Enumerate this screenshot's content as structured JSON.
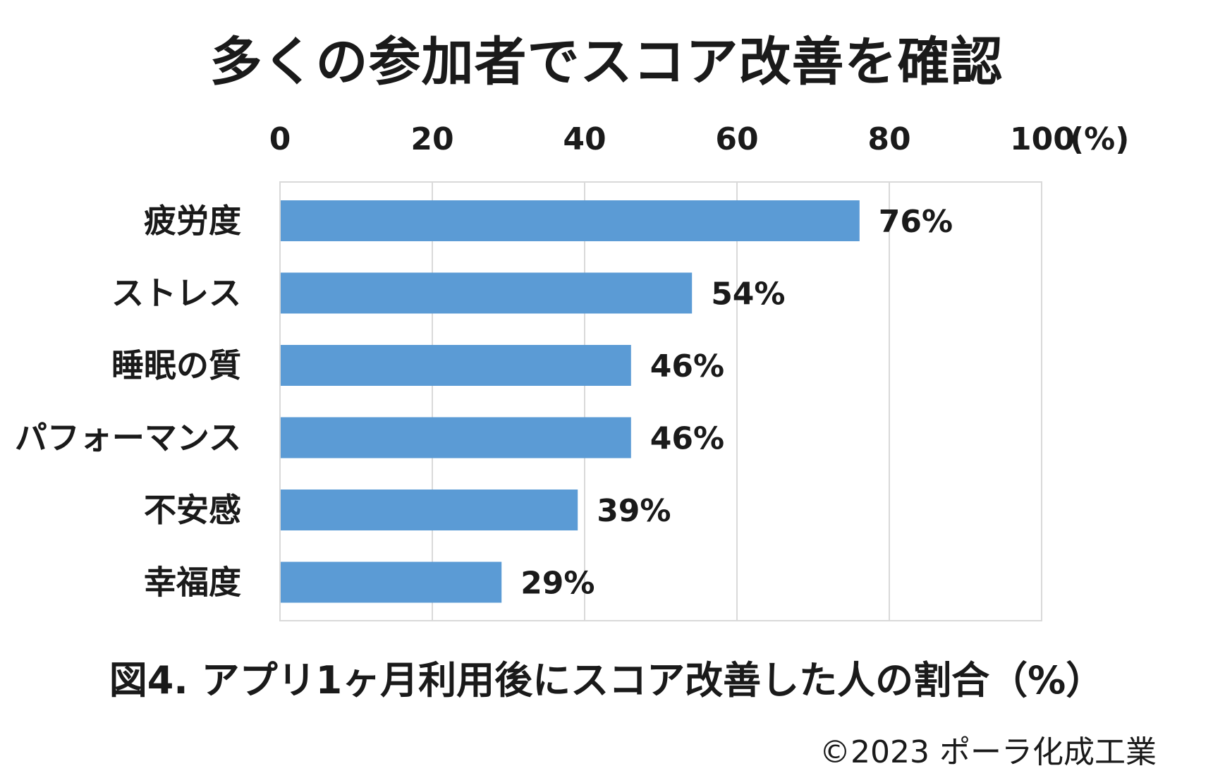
{
  "chart_data": {
    "type": "bar",
    "orientation": "horizontal",
    "title": "多くの参加者でスコア改善を確認",
    "caption": "図4. アプリ1ヶ月利用後にスコア改善した人の割合（%）",
    "axis_unit": "(%)",
    "xlim": [
      0,
      100
    ],
    "xticks": [
      0,
      20,
      40,
      60,
      80,
      100
    ],
    "grid": true,
    "categories": [
      "疲労度",
      "ストレス",
      "睡眠の質",
      "パフォーマンス",
      "不安感",
      "幸福度"
    ],
    "values": [
      76,
      54,
      46,
      46,
      39,
      29
    ],
    "data_labels": [
      "76%",
      "54%",
      "46%",
      "46%",
      "39%",
      "29%"
    ],
    "bar_color": "#5b9bd5"
  },
  "footer": {
    "copyright": "©2023 ポーラ化成工業"
  }
}
